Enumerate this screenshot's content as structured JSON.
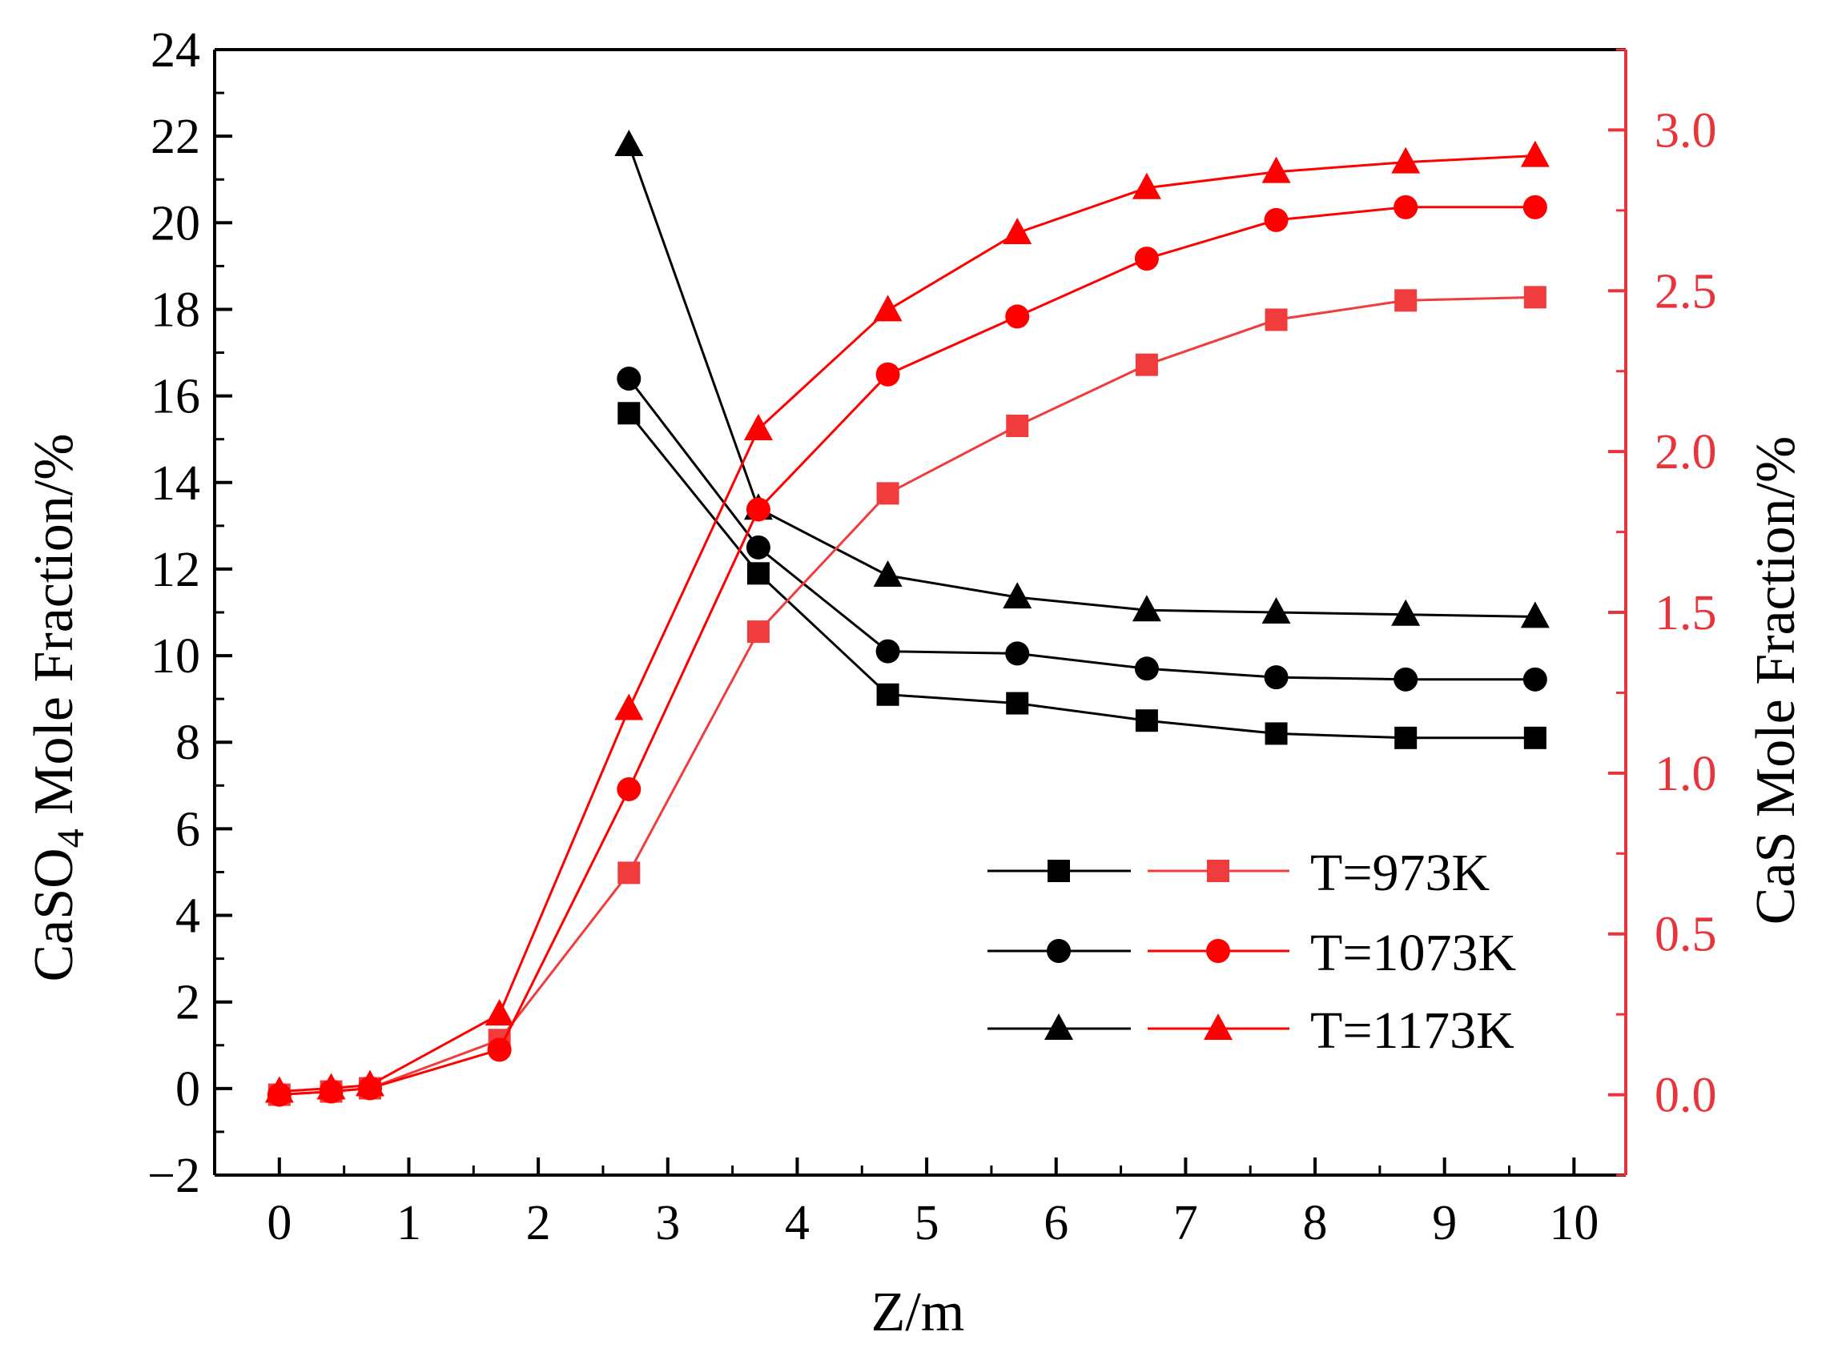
{
  "colors": {
    "casO4": "#000000",
    "cas": "#ff0000",
    "cas_973": "#f03c3c",
    "right_axis": "#e8343a"
  },
  "chart_data": {
    "type": "line",
    "x": [
      0,
      0.4,
      0.7,
      1.7,
      2.7,
      3.7,
      4.7,
      5.7,
      6.7,
      7.7,
      8.7,
      9.7
    ],
    "xlabel": "Z/m",
    "xlim": [
      -0.5,
      10.4
    ],
    "xticks": [
      "0",
      "1",
      "2",
      "3",
      "4",
      "5",
      "6",
      "7",
      "8",
      "9",
      "10"
    ],
    "ylabel_left": {
      "prefix": "CaSO",
      "sub": "4",
      "suffix": " Mole Fraction/%"
    },
    "ylim_left": [
      -2,
      24
    ],
    "yticks_left": [
      "−2",
      "0",
      "2",
      "4",
      "6",
      "8",
      "10",
      "12",
      "14",
      "16",
      "18",
      "20",
      "22",
      "24"
    ],
    "ylabel_right": "CaS Mole Fraction/%",
    "ylim_right": [
      -0.25,
      3.25
    ],
    "yticks_right": [
      "0.0",
      "0.5",
      "1.0",
      "1.5",
      "2.0",
      "2.5",
      "3.0"
    ],
    "series": [
      {
        "name": "CaSO4 T=973K",
        "axis": "left",
        "marker": "square",
        "color_key": "casO4",
        "x": [
          2.7,
          3.7,
          4.7,
          5.7,
          6.7,
          7.7,
          8.7,
          9.7
        ],
        "values": [
          15.6,
          11.9,
          9.1,
          8.9,
          8.5,
          8.2,
          8.1,
          8.1
        ]
      },
      {
        "name": "CaSO4 T=1073K",
        "axis": "left",
        "marker": "circle",
        "color_key": "casO4",
        "x": [
          2.7,
          3.7,
          4.7,
          5.7,
          6.7,
          7.7,
          8.7,
          9.7
        ],
        "values": [
          16.4,
          12.5,
          10.1,
          10.05,
          9.7,
          9.5,
          9.45,
          9.45
        ]
      },
      {
        "name": "CaSO4 T=1173K",
        "axis": "left",
        "marker": "triangle",
        "color_key": "casO4",
        "x": [
          2.7,
          3.7,
          4.7,
          5.7,
          6.7,
          7.7,
          8.7,
          9.7
        ],
        "values": [
          21.8,
          13.4,
          11.85,
          11.35,
          11.05,
          11.0,
          10.95,
          10.9
        ]
      },
      {
        "name": "CaS T=973K",
        "axis": "right",
        "marker": "square",
        "color_key": "cas_973",
        "x": [
          0,
          0.4,
          0.7,
          1.7,
          2.7,
          3.7,
          4.7,
          5.7,
          6.7,
          7.7,
          8.7,
          9.7
        ],
        "values": [
          0.0,
          0.01,
          0.02,
          0.17,
          0.69,
          1.44,
          1.87,
          2.08,
          2.27,
          2.41,
          2.47,
          2.48
        ]
      },
      {
        "name": "CaS T=1073K",
        "axis": "right",
        "marker": "circle",
        "color_key": "cas",
        "x": [
          0,
          0.4,
          0.7,
          1.7,
          2.7,
          3.7,
          4.7,
          5.7,
          6.7,
          7.7,
          8.7,
          9.7
        ],
        "values": [
          0.0,
          0.01,
          0.02,
          0.14,
          0.95,
          1.82,
          2.24,
          2.42,
          2.6,
          2.72,
          2.76,
          2.76
        ]
      },
      {
        "name": "CaS T=1173K",
        "axis": "right",
        "marker": "triangle",
        "color_key": "cas",
        "x": [
          0,
          0.4,
          0.7,
          1.7,
          2.7,
          3.7,
          4.7,
          5.7,
          6.7,
          7.7,
          8.7,
          9.7
        ],
        "values": [
          0.01,
          0.02,
          0.03,
          0.25,
          1.2,
          2.07,
          2.44,
          2.68,
          2.82,
          2.87,
          2.9,
          2.92
        ]
      }
    ],
    "legend": {
      "placement": "bottom-right",
      "entries": [
        {
          "label": "T=973K",
          "marker": "square"
        },
        {
          "label": "T=1073K",
          "marker": "circle"
        },
        {
          "label": "T=1173K",
          "marker": "triangle"
        }
      ]
    }
  }
}
